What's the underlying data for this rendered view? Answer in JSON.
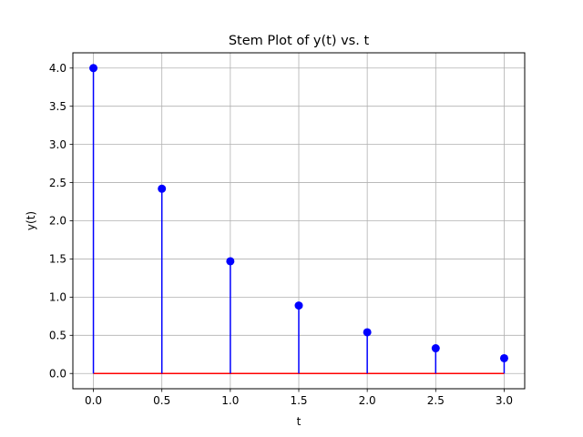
{
  "chart_data": {
    "type": "stem",
    "title": "Stem Plot of y(t) vs. t",
    "xlabel": "t",
    "ylabel": "y(t)",
    "x": [
      0.0,
      0.5,
      1.0,
      1.5,
      2.0,
      2.5,
      3.0
    ],
    "y": [
      4.0,
      2.42,
      1.47,
      0.89,
      0.54,
      0.33,
      0.2
    ],
    "xlim": [
      -0.15,
      3.15
    ],
    "ylim": [
      -0.2,
      4.2
    ],
    "xticks": [
      "0.0",
      "0.5",
      "1.0",
      "1.5",
      "2.0",
      "2.5",
      "3.0"
    ],
    "yticks": [
      "0.0",
      "0.5",
      "1.0",
      "1.5",
      "2.0",
      "2.5",
      "3.0",
      "3.5",
      "4.0"
    ],
    "grid": true,
    "colors": {
      "stem": "#0000ff",
      "marker": "#0000ff",
      "baseline": "#ff0000",
      "grid": "#b0b0b0"
    }
  }
}
